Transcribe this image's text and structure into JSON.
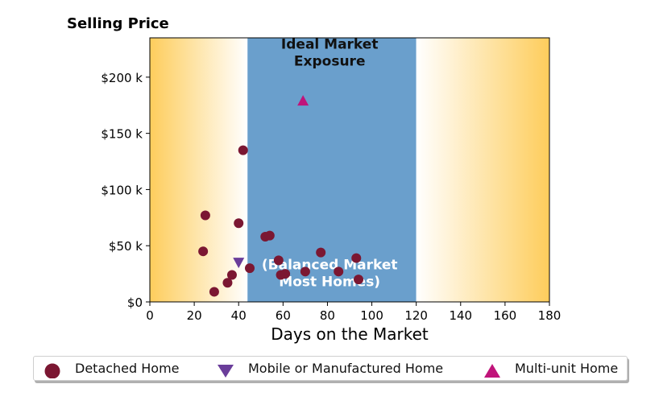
{
  "chart_data": {
    "type": "scatter",
    "title": "Selling Price",
    "xlabel": "Days on the Market",
    "ylabel": "",
    "xlim": [
      0,
      180
    ],
    "ylim": [
      0,
      235000
    ],
    "x_ticks": [
      0,
      20,
      40,
      60,
      80,
      100,
      120,
      140,
      160,
      180
    ],
    "x_tick_labels": [
      "0",
      "20",
      "40",
      "60",
      "80",
      "100",
      "120",
      "140",
      "160",
      "180"
    ],
    "y_ticks": [
      0,
      50000,
      100000,
      150000,
      200000
    ],
    "y_tick_labels": [
      "$0",
      "$50 k",
      "$100 k",
      "$150 k",
      "$200 k"
    ],
    "grid": false,
    "legend_position": "bottom",
    "background": {
      "ideal_band": {
        "x_start": 44,
        "x_end": 120,
        "color": "#6a9fcc"
      },
      "gradient_edge_color": "#fecd5c",
      "gradient_center_color": "#ffffff"
    },
    "annotations": [
      {
        "text": "Ideal Market\nExposure",
        "x": 81,
        "y": 218000,
        "color": "#111111"
      },
      {
        "text": "(Balanced Market\nMost Homes)",
        "x": 81,
        "y": 22000,
        "color": "#ffffff"
      }
    ],
    "series": [
      {
        "name": "Detached Home",
        "marker": "circle",
        "color": "#7b1732",
        "points": [
          [
            24,
            45000
          ],
          [
            25,
            77000
          ],
          [
            29,
            9000
          ],
          [
            35,
            17000
          ],
          [
            37,
            24000
          ],
          [
            40,
            70000
          ],
          [
            42,
            135000
          ],
          [
            45,
            30000
          ],
          [
            52,
            58000
          ],
          [
            54,
            59000
          ],
          [
            58,
            37000
          ],
          [
            59,
            24000
          ],
          [
            61,
            25000
          ],
          [
            70,
            27000
          ],
          [
            77,
            44000
          ],
          [
            85,
            27000
          ],
          [
            93,
            39000
          ],
          [
            94,
            20000
          ]
        ]
      },
      {
        "name": "Mobile or Manufactured Home",
        "marker": "triangle-down",
        "color": "#6a3d9a",
        "points": [
          [
            40,
            35000
          ]
        ]
      },
      {
        "name": "Multi-unit Home",
        "marker": "triangle-up",
        "color": "#c0147a",
        "points": [
          [
            69,
            179000
          ]
        ]
      }
    ]
  }
}
